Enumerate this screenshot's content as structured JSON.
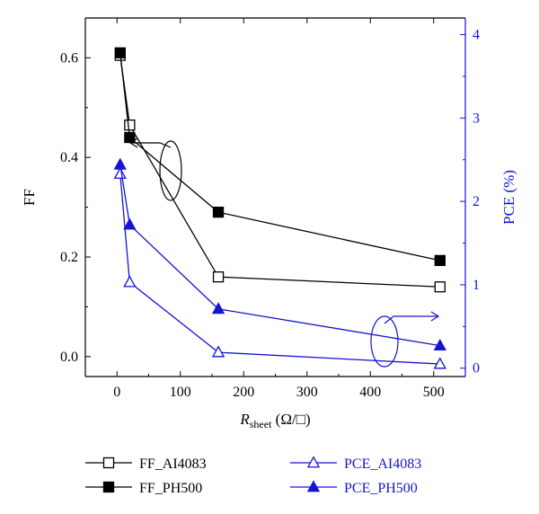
{
  "chart_data": {
    "type": "line",
    "xlabel_main": "R",
    "xlabel_sub": "sheet",
    "xlabel_unit": " (Ω/□)",
    "ylabel_left": "FF",
    "ylabel_right": "PCE (%)",
    "xlim": [
      -50,
      550
    ],
    "ylim_left": [
      -0.04,
      0.68
    ],
    "ylim_right": [
      -0.1,
      4.2
    ],
    "xticks": [
      0,
      100,
      200,
      300,
      400,
      500
    ],
    "xtick_labels": [
      "0",
      "100",
      "200",
      "300",
      "400",
      "500"
    ],
    "yticks_left": [
      0.0,
      0.2,
      0.4,
      0.6
    ],
    "ytick_labels_left": [
      "0.0",
      "0.2",
      "0.4",
      "0.6"
    ],
    "yticks_right": [
      0,
      1,
      2,
      3,
      4
    ],
    "ytick_labels_right": [
      "0",
      "1",
      "2",
      "3",
      "4"
    ],
    "series": [
      {
        "name": "FF_AI4083",
        "axis": "left",
        "marker": "square-open",
        "color": "#000000",
        "x": [
          5,
          20,
          160,
          510
        ],
        "y": [
          0.605,
          0.465,
          0.16,
          0.14
        ]
      },
      {
        "name": "FF_PH500",
        "axis": "left",
        "marker": "square-filled",
        "color": "#000000",
        "x": [
          5,
          20,
          160,
          510
        ],
        "y": [
          0.61,
          0.44,
          0.29,
          0.193
        ]
      },
      {
        "name": "PCE_AI4083",
        "axis": "right",
        "marker": "triangle-open",
        "color": "#1414d2",
        "x": [
          5,
          20,
          160,
          510
        ],
        "y": [
          2.33,
          1.03,
          0.19,
          0.05
        ]
      },
      {
        "name": "PCE_PH500",
        "axis": "right",
        "marker": "triangle-filled",
        "color": "#1414d2",
        "x": [
          5,
          20,
          160,
          510
        ],
        "y": [
          2.44,
          1.72,
          0.71,
          0.27
        ]
      }
    ],
    "colors": {
      "black": "#000000",
      "blue": "#1414d2"
    },
    "grid": false,
    "legend_placement": "bottom"
  }
}
